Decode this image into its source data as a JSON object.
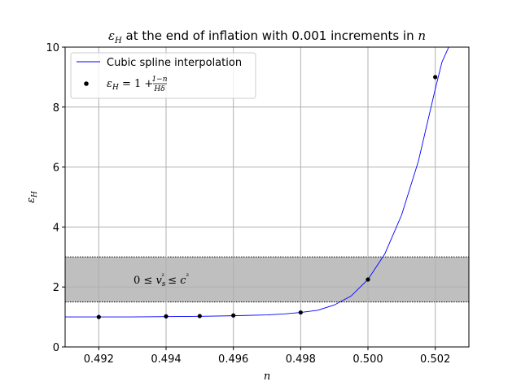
{
  "chart_data": {
    "type": "scatter",
    "title": "εH at the end of inflation with 0.001 increments in n",
    "xlabel": "n",
    "ylabel": "εH",
    "xlim": [
      0.491,
      0.503
    ],
    "ylim": [
      0,
      10
    ],
    "xticks": [
      0.492,
      0.494,
      0.496,
      0.498,
      0.5,
      0.502
    ],
    "xtick_labels": [
      "0.492",
      "0.494",
      "0.496",
      "0.498",
      "0.500",
      "0.502"
    ],
    "yticks": [
      0,
      2,
      4,
      6,
      8,
      10
    ],
    "ytick_labels": [
      "0",
      "2",
      "4",
      "6",
      "8",
      "10"
    ],
    "grid": true,
    "legend_position": "top-left",
    "series": [
      {
        "name": "Cubic spline interpolation",
        "kind": "line",
        "color": "#0000ff",
        "x": [
          0.491,
          0.492,
          0.493,
          0.494,
          0.495,
          0.496,
          0.497,
          0.4975,
          0.498,
          0.4985,
          0.499,
          0.4995,
          0.5,
          0.5005,
          0.501,
          0.5015,
          0.502,
          0.5022,
          0.5024
        ],
        "y": [
          1.0,
          1.0,
          1.0,
          1.01,
          1.02,
          1.04,
          1.07,
          1.1,
          1.15,
          1.22,
          1.4,
          1.7,
          2.25,
          3.1,
          4.4,
          6.2,
          8.6,
          9.5,
          10.0
        ]
      },
      {
        "name": "εH = 1 + (1−n)/(Hδ)",
        "kind": "points",
        "color": "#000000",
        "x": [
          0.492,
          0.494,
          0.495,
          0.496,
          0.498,
          0.5,
          0.502
        ],
        "y": [
          1.0,
          1.02,
          1.03,
          1.05,
          1.15,
          2.25,
          9.0
        ]
      }
    ],
    "band": {
      "y_range": [
        1.5,
        3.0
      ],
      "color": "#bfbfbf",
      "annotation": "0 ≤ vs² ≤ c²"
    }
  }
}
